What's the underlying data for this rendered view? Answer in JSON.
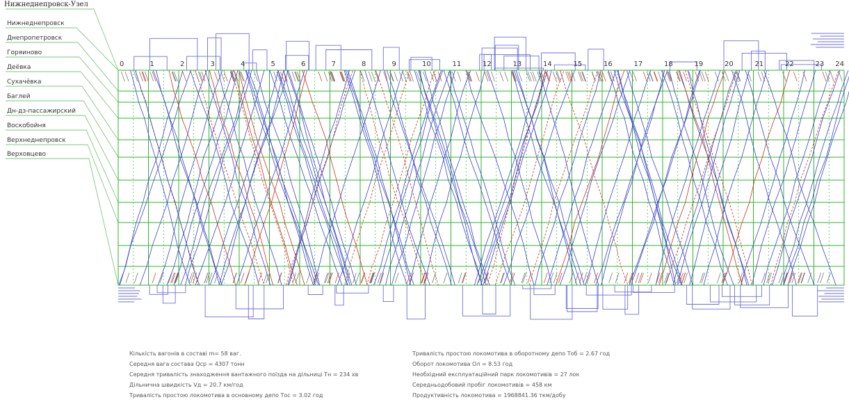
{
  "title": "Нижнеднепровск-Узел",
  "stations": [
    "Нижнеднепровск",
    "Днепропетровск",
    "Горяиново",
    "Деёвка",
    "Сухачёвка",
    "Баглей",
    "Дн-дз-пассажирский",
    "Воскобойня",
    "Верхнеднепровск",
    "Верховцево"
  ],
  "hours": [
    "0",
    "1",
    "2",
    "3",
    "4",
    "5",
    "6",
    "7",
    "8",
    "9",
    "10",
    "11",
    "12",
    "13",
    "14",
    "15",
    "16",
    "17",
    "18",
    "19",
    "20",
    "21",
    "22",
    "23",
    "24"
  ],
  "colors": {
    "freight": "#3a43c8",
    "passenger": "#c8321e",
    "grid": "#2db52d",
    "leader": "#7aca7a",
    "depot": "#6b6fd8"
  },
  "stats_left": [
    "Кількість вагонів в составі m= 58 ваг.",
    "Середня вага состава  Qср = 4307 тонн",
    "Середня тривалість знаходження вантажного поїзда на дільниці Тн = 234 хв",
    "Дільнична швидкість Vд = 20.7  км/год",
    "Тривалість простою локомотива в основному депо Тос = 3.02 год"
  ],
  "stats_right": [
    "Тривалість простою локомотива в оборотному депо Тоб = 2.67 год",
    "Оборот локомотива Ол = 8.53 год",
    "Необхідний експлуатаційний парк локомотивів = 27 лок",
    "Середньодобовий пробіг локомотивів = 458 км",
    "Продуктивність локомотива = 1968841.36 ткм/добу"
  ]
}
